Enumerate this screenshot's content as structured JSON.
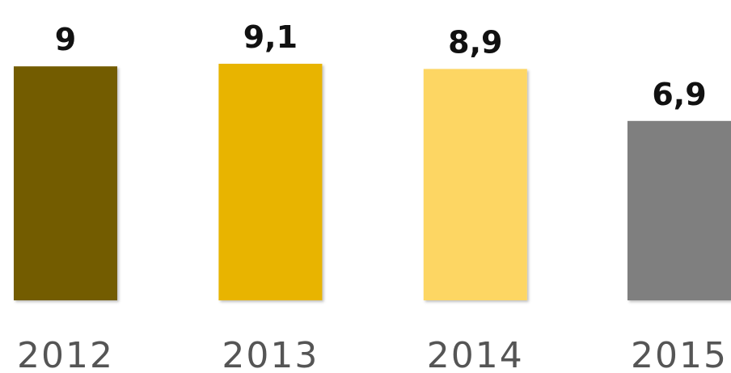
{
  "chart_data": {
    "type": "bar",
    "categories": [
      "2012",
      "2013",
      "2014",
      "2015"
    ],
    "values": [
      9,
      9.1,
      8.9,
      6.9
    ],
    "value_labels": [
      "9",
      "9,1",
      "8,9",
      "6,9"
    ],
    "colors": [
      "#735b00",
      "#e8b400",
      "#fdd663",
      "#7f7f7f"
    ]
  }
}
